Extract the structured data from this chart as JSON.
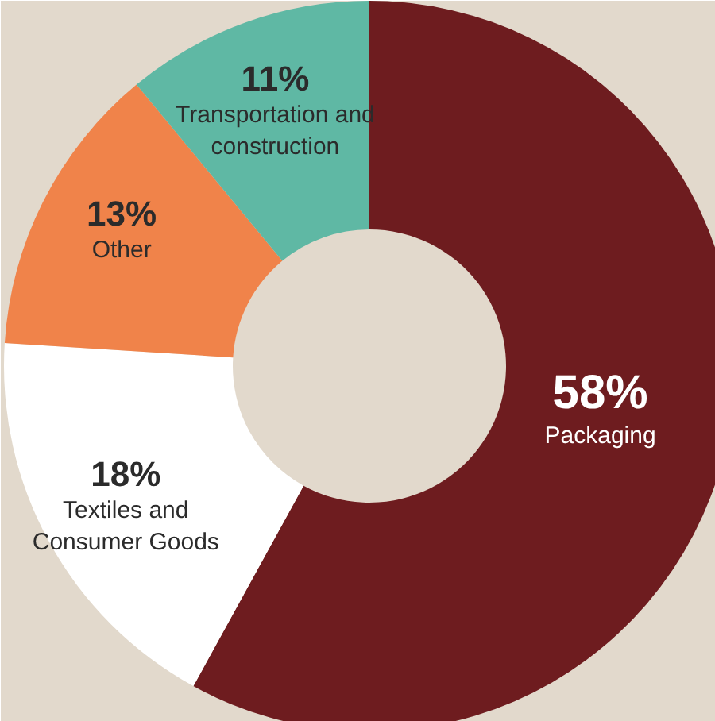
{
  "chart_data": {
    "type": "donut",
    "categories": [
      "Packaging",
      "Textiles and Consumer Goods",
      "Other",
      "Transportation and construction"
    ],
    "values": [
      58,
      18,
      13,
      11
    ],
    "value_labels": [
      "58%",
      "18%",
      "13%",
      "11%"
    ],
    "colors": [
      "#6e1c1f",
      "#ffffff",
      "#f0834a",
      "#5fb8a4"
    ]
  }
}
